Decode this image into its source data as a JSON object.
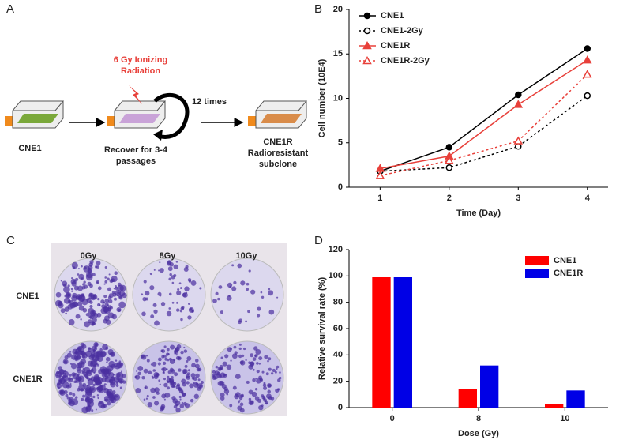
{
  "panel_labels": [
    "A",
    "B",
    "C",
    "D"
  ],
  "diagram": {
    "start": "CNE1",
    "radiation": [
      "6 Gy Ionizing",
      "Radiation"
    ],
    "repeat": "12 times",
    "recover": [
      "Recover for 3-4",
      "passages"
    ],
    "result": [
      "CNE1R",
      "Radioresistant",
      "subclone"
    ]
  },
  "colony_image": {
    "columns": [
      "0Gy",
      "8Gy",
      "10Gy"
    ],
    "rows": [
      "CNE1",
      "CNE1R"
    ]
  },
  "chart_data": [
    {
      "type": "line",
      "x_label": "Time (Day)",
      "y_label": "Cell number (10E4)",
      "x": [
        1,
        2,
        3,
        4
      ],
      "xlim": [
        0.55,
        4.3
      ],
      "xticks": [
        1,
        2,
        3,
        4
      ],
      "ylim": [
        0,
        20
      ],
      "yticks": [
        0,
        5,
        10,
        15,
        20
      ],
      "legend": "upper left",
      "series": [
        {
          "name": "CNE1",
          "color": "#000000",
          "line_style": "solid",
          "marker": "circle",
          "values": [
            1.8,
            4.5,
            10.4,
            15.6
          ]
        },
        {
          "name": "CNE1-2Gy",
          "color": "#000000",
          "line_style": "dotted",
          "marker": "open-circle",
          "values": [
            1.8,
            2.2,
            4.6,
            10.3
          ]
        },
        {
          "name": "CNE1R",
          "color": "#e8403a",
          "line_style": "solid",
          "marker": "triangle",
          "values": [
            2.1,
            3.5,
            9.3,
            14.3
          ]
        },
        {
          "name": "CNE1R-2Gy",
          "color": "#e8403a",
          "line_style": "dotted",
          "marker": "open-triangle",
          "values": [
            1.3,
            3.0,
            5.2,
            12.7
          ]
        }
      ]
    },
    {
      "type": "bar",
      "x_label": "Dose (Gy)",
      "y_label": "Relative survival rate (%)",
      "categories": [
        "0",
        "8",
        "10"
      ],
      "ylim": [
        0,
        120
      ],
      "yticks": [
        0,
        20,
        40,
        60,
        80,
        100,
        120
      ],
      "legend": "upper right",
      "series": [
        {
          "name": "CNE1",
          "color": "#ff0000",
          "values": [
            99,
            14,
            3
          ]
        },
        {
          "name": "CNE1R",
          "color": "#0000e6",
          "values": [
            99,
            32,
            13
          ]
        }
      ]
    }
  ]
}
